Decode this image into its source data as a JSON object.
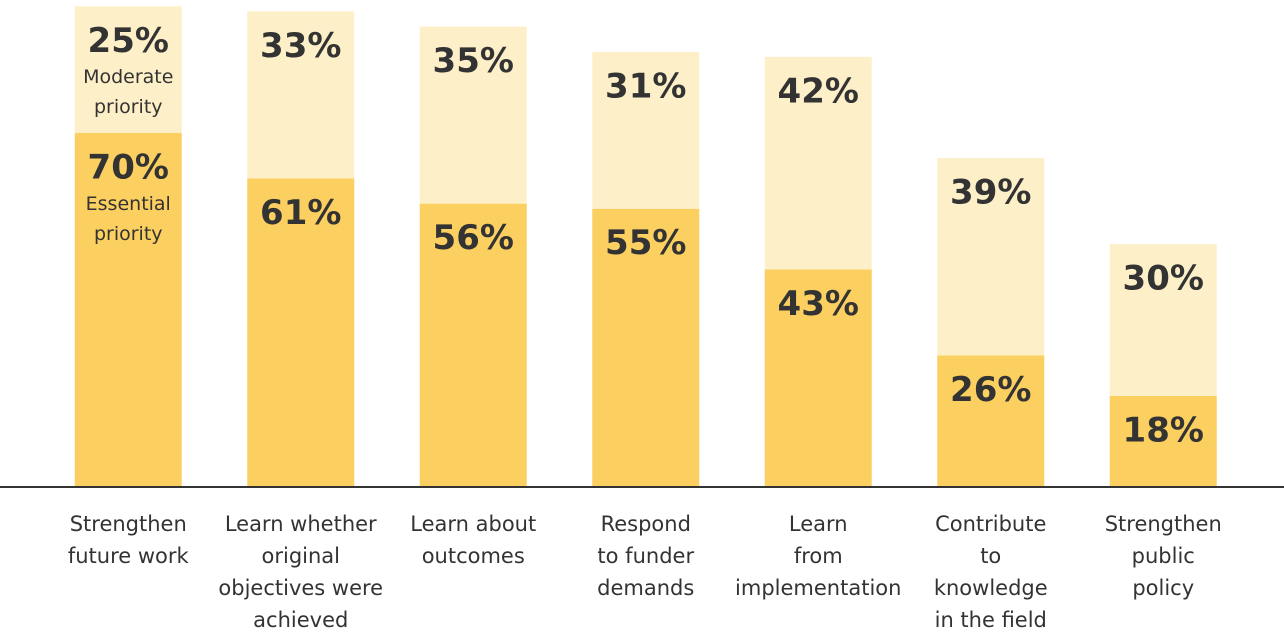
{
  "chart_data": {
    "type": "stacked_bar",
    "categories": [
      [
        "Strengthen",
        "future work"
      ],
      [
        "Learn whether",
        "original",
        "objectives were",
        "achieved"
      ],
      [
        "Learn about",
        "outcomes"
      ],
      [
        "Respond",
        "to funder",
        "demands"
      ],
      [
        "Learn",
        "from",
        "implementation"
      ],
      [
        "Contribute",
        "to",
        "knowledge",
        "in the field"
      ],
      [
        "Strengthen",
        "public",
        "policy"
      ]
    ],
    "series": [
      {
        "name": "Essential priority",
        "color": "#fcd060",
        "values": [
          70,
          61,
          56,
          55,
          43,
          26,
          18
        ],
        "value_labels": [
          "70%",
          "61%",
          "56%",
          "55%",
          "43%",
          "26%",
          "18%"
        ]
      },
      {
        "name": "Moderate priority",
        "color": "#fdefc7",
        "values": [
          25,
          33,
          35,
          31,
          42,
          39,
          30
        ],
        "value_labels": [
          "25%",
          "33%",
          "35%",
          "31%",
          "42%",
          "39%",
          "30%"
        ]
      }
    ],
    "ylim": [
      0,
      100
    ]
  }
}
